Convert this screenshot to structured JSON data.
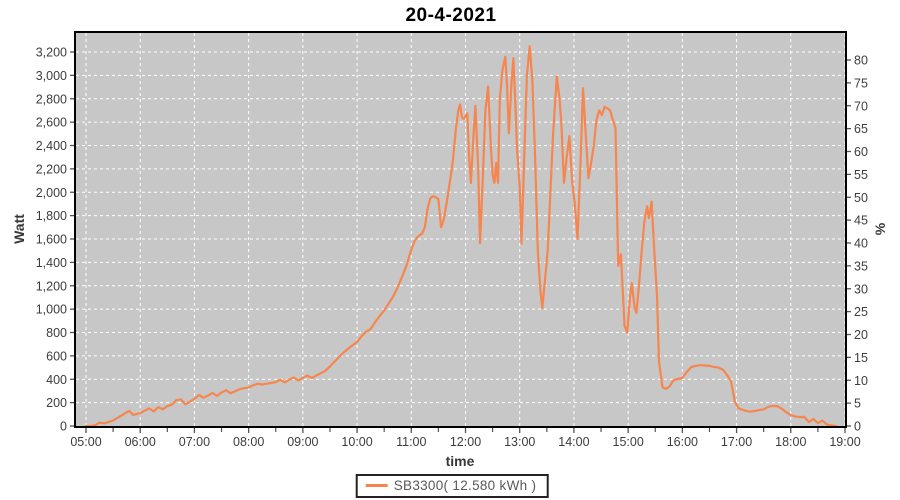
{
  "title": "20-4-2021",
  "legend": {
    "label": "SB3300( 12.580 kWh )"
  },
  "colors": {
    "series_orange": "#f6864e",
    "plot_background": "#c7c7c7",
    "gridline": "#ffffff",
    "axis_border": "#000000",
    "tick_mark": "#555555",
    "tick_text": "#3d3d3d"
  },
  "chart_data": {
    "type": "line",
    "title": "20-4-2021",
    "xlabel": "time",
    "ylabel_left": "Watt",
    "ylabel_right": "%",
    "grid": "on",
    "legend_position": "bottom-center",
    "x_axis": {
      "tick_labels": [
        "05:00",
        "06:00",
        "07:00",
        "08:00",
        "09:00",
        "10:00",
        "11:00",
        "12:00",
        "13:00",
        "14:00",
        "15:00",
        "16:00",
        "17:00",
        "18:00",
        "19:00"
      ],
      "minor_tick_every_minutes": 30,
      "range_minutes": [
        0,
        840
      ]
    },
    "y_left": {
      "min": 0,
      "max": 3200,
      "step": 200,
      "tick_labels": [
        "0",
        "200",
        "400",
        "600",
        "800",
        "1,000",
        "1,200",
        "1,400",
        "1,600",
        "1,800",
        "2,000",
        "2,200",
        "2,400",
        "2,600",
        "2,800",
        "3,000",
        "3,200"
      ]
    },
    "y_right": {
      "min": 0,
      "max": 80,
      "step": 5,
      "tick_labels": [
        "0",
        "5",
        "10",
        "15",
        "20",
        "25",
        "30",
        "35",
        "40",
        "45",
        "50",
        "55",
        "60",
        "65",
        "70",
        "75",
        "80"
      ]
    },
    "series": [
      {
        "name": "SB3300( 12.580 kWh )",
        "color": "#f6864e",
        "points_format": "[minutes_after_05:00, watts]",
        "points": [
          [
            0,
            0
          ],
          [
            5,
            0
          ],
          [
            10,
            5
          ],
          [
            15,
            30
          ],
          [
            20,
            22
          ],
          [
            25,
            35
          ],
          [
            30,
            48
          ],
          [
            35,
            70
          ],
          [
            40,
            92
          ],
          [
            45,
            118
          ],
          [
            48,
            128
          ],
          [
            52,
            95
          ],
          [
            55,
            100
          ],
          [
            60,
            110
          ],
          [
            65,
            132
          ],
          [
            70,
            150
          ],
          [
            75,
            125
          ],
          [
            80,
            162
          ],
          [
            85,
            142
          ],
          [
            90,
            170
          ],
          [
            95,
            182
          ],
          [
            100,
            222
          ],
          [
            105,
            228
          ],
          [
            110,
            185
          ],
          [
            115,
            208
          ],
          [
            120,
            232
          ],
          [
            125,
            265
          ],
          [
            130,
            242
          ],
          [
            135,
            260
          ],
          [
            140,
            283
          ],
          [
            145,
            257
          ],
          [
            150,
            287
          ],
          [
            155,
            306
          ],
          [
            160,
            280
          ],
          [
            165,
            298
          ],
          [
            170,
            315
          ],
          [
            175,
            323
          ],
          [
            180,
            330
          ],
          [
            185,
            348
          ],
          [
            190,
            362
          ],
          [
            195,
            355
          ],
          [
            200,
            362
          ],
          [
            205,
            368
          ],
          [
            210,
            375
          ],
          [
            215,
            395
          ],
          [
            220,
            373
          ],
          [
            225,
            398
          ],
          [
            230,
            415
          ],
          [
            235,
            390
          ],
          [
            240,
            413
          ],
          [
            245,
            432
          ],
          [
            250,
            410
          ],
          [
            255,
            433
          ],
          [
            260,
            452
          ],
          [
            265,
            472
          ],
          [
            270,
            510
          ],
          [
            275,
            550
          ],
          [
            280,
            590
          ],
          [
            285,
            628
          ],
          [
            290,
            660
          ],
          [
            295,
            692
          ],
          [
            300,
            720
          ],
          [
            305,
            768
          ],
          [
            310,
            808
          ],
          [
            315,
            830
          ],
          [
            320,
            888
          ],
          [
            325,
            942
          ],
          [
            330,
            988
          ],
          [
            335,
            1048
          ],
          [
            340,
            1108
          ],
          [
            345,
            1188
          ],
          [
            350,
            1282
          ],
          [
            355,
            1380
          ],
          [
            360,
            1510
          ],
          [
            364,
            1588
          ],
          [
            368,
            1625
          ],
          [
            372,
            1645
          ],
          [
            375,
            1700
          ],
          [
            378,
            1860
          ],
          [
            381,
            1948
          ],
          [
            384,
            1965
          ],
          [
            387,
            1958
          ],
          [
            390,
            1940
          ],
          [
            393,
            1700
          ],
          [
            396,
            1768
          ],
          [
            400,
            1950
          ],
          [
            403,
            2100
          ],
          [
            406,
            2270
          ],
          [
            409,
            2520
          ],
          [
            412,
            2700
          ],
          [
            414,
            2752
          ],
          [
            416,
            2640
          ],
          [
            418,
            2628
          ],
          [
            422,
            2675
          ],
          [
            424,
            2300
          ],
          [
            426,
            2080
          ],
          [
            429,
            2500
          ],
          [
            431,
            2740
          ],
          [
            434,
            2200
          ],
          [
            436,
            1565
          ],
          [
            439,
            2100
          ],
          [
            442,
            2700
          ],
          [
            445,
            2905
          ],
          [
            448,
            2400
          ],
          [
            450,
            2150
          ],
          [
            452,
            2080
          ],
          [
            454,
            2250
          ],
          [
            456,
            2080
          ],
          [
            458,
            2800
          ],
          [
            461,
            3050
          ],
          [
            464,
            3160
          ],
          [
            466,
            2900
          ],
          [
            468,
            2505
          ],
          [
            471,
            2950
          ],
          [
            473,
            3145
          ],
          [
            475,
            2800
          ],
          [
            477,
            2370
          ],
          [
            480,
            2050
          ],
          [
            482,
            1560
          ],
          [
            485,
            2300
          ],
          [
            488,
            3000
          ],
          [
            491,
            3250
          ],
          [
            494,
            2950
          ],
          [
            497,
            2300
          ],
          [
            500,
            1500
          ],
          [
            503,
            1150
          ],
          [
            505,
            1010
          ],
          [
            508,
            1250
          ],
          [
            511,
            1500
          ],
          [
            514,
            2000
          ],
          [
            517,
            2500
          ],
          [
            521,
            2990
          ],
          [
            524,
            2800
          ],
          [
            526,
            2600
          ],
          [
            529,
            2080
          ],
          [
            532,
            2300
          ],
          [
            535,
            2480
          ],
          [
            538,
            2100
          ],
          [
            541,
            1900
          ],
          [
            544,
            1600
          ],
          [
            547,
            2200
          ],
          [
            550,
            2890
          ],
          [
            553,
            2500
          ],
          [
            556,
            2120
          ],
          [
            559,
            2250
          ],
          [
            562,
            2400
          ],
          [
            565,
            2620
          ],
          [
            568,
            2700
          ],
          [
            571,
            2660
          ],
          [
            574,
            2730
          ],
          [
            577,
            2718
          ],
          [
            580,
            2700
          ],
          [
            583,
            2620
          ],
          [
            586,
            2550
          ],
          [
            589,
            1370
          ],
          [
            592,
            1470
          ],
          [
            596,
            860
          ],
          [
            599,
            800
          ],
          [
            602,
            1100
          ],
          [
            604,
            1222
          ],
          [
            607,
            1020
          ],
          [
            609,
            968
          ],
          [
            612,
            1200
          ],
          [
            615,
            1500
          ],
          [
            618,
            1750
          ],
          [
            621,
            1880
          ],
          [
            623,
            1780
          ],
          [
            626,
            1920
          ],
          [
            629,
            1500
          ],
          [
            632,
            1100
          ],
          [
            634,
            560
          ],
          [
            638,
            330
          ],
          [
            642,
            318
          ],
          [
            646,
            340
          ],
          [
            650,
            390
          ],
          [
            655,
            402
          ],
          [
            660,
            412
          ],
          [
            665,
            465
          ],
          [
            670,
            505
          ],
          [
            675,
            515
          ],
          [
            680,
            520
          ],
          [
            685,
            518
          ],
          [
            690,
            514
          ],
          [
            695,
            506
          ],
          [
            700,
            500
          ],
          [
            705,
            482
          ],
          [
            710,
            430
          ],
          [
            714,
            380
          ],
          [
            718,
            210
          ],
          [
            722,
            152
          ],
          [
            726,
            140
          ],
          [
            730,
            130
          ],
          [
            735,
            122
          ],
          [
            740,
            128
          ],
          [
            745,
            136
          ],
          [
            750,
            142
          ],
          [
            755,
            164
          ],
          [
            760,
            172
          ],
          [
            765,
            170
          ],
          [
            770,
            148
          ],
          [
            775,
            118
          ],
          [
            780,
            92
          ],
          [
            785,
            82
          ],
          [
            790,
            76
          ],
          [
            795,
            78
          ],
          [
            800,
            34
          ],
          [
            805,
            60
          ],
          [
            810,
            25
          ],
          [
            815,
            46
          ],
          [
            820,
            12
          ],
          [
            825,
            5
          ],
          [
            830,
            0
          ]
        ]
      }
    ]
  }
}
